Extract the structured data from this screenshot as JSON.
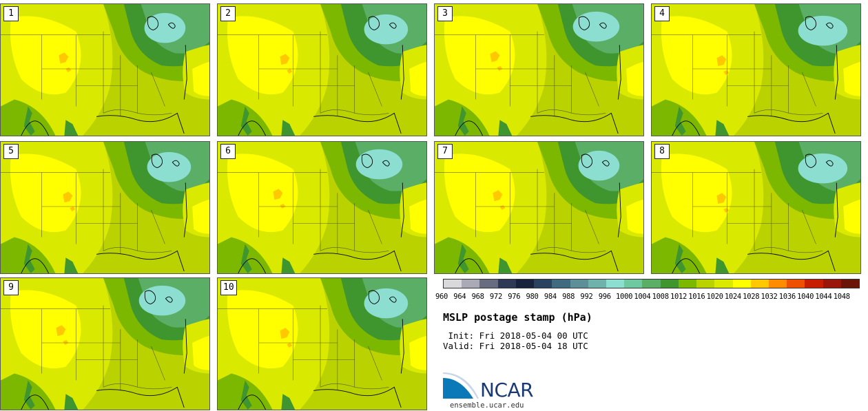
{
  "stamps": [
    {
      "label": "1",
      "variant": 0
    },
    {
      "label": "2",
      "variant": 1
    },
    {
      "label": "3",
      "variant": 2
    },
    {
      "label": "4",
      "variant": 3
    },
    {
      "label": "5",
      "variant": 1
    },
    {
      "label": "6",
      "variant": 2
    },
    {
      "label": "7",
      "variant": 0
    },
    {
      "label": "8",
      "variant": 3
    },
    {
      "label": "9",
      "variant": 2
    },
    {
      "label": "10",
      "variant": 1
    }
  ],
  "colorbar": {
    "ticks": [
      "960",
      "964",
      "968",
      "972",
      "976",
      "980",
      "984",
      "988",
      "992",
      "996",
      "1000",
      "1004",
      "1008",
      "1012",
      "1016",
      "1020",
      "1024",
      "1028",
      "1032",
      "1036",
      "1040",
      "1044",
      "1048"
    ],
    "colors": [
      "#d9d9dc",
      "#a9aab5",
      "#676c80",
      "#2e3a55",
      "#17233d",
      "#284260",
      "#3f6a80",
      "#5c8f98",
      "#6fb1ab",
      "#8bded0",
      "#6fc9a0",
      "#5aae66",
      "#3f962f",
      "#7db800",
      "#b9d200",
      "#d9e900",
      "#ffff00",
      "#ffc800",
      "#ff8c00",
      "#ee4f00",
      "#c81e00",
      "#9a160a",
      "#6b1408"
    ]
  },
  "title": "MSLP postage stamp (hPa)",
  "init": " Init: Fri 2018-05-04 00 UTC",
  "valid": "Valid: Fri 2018-05-04 18 UTC",
  "logo_text": "NCAR",
  "site": "ensemble.ucar.edu"
}
